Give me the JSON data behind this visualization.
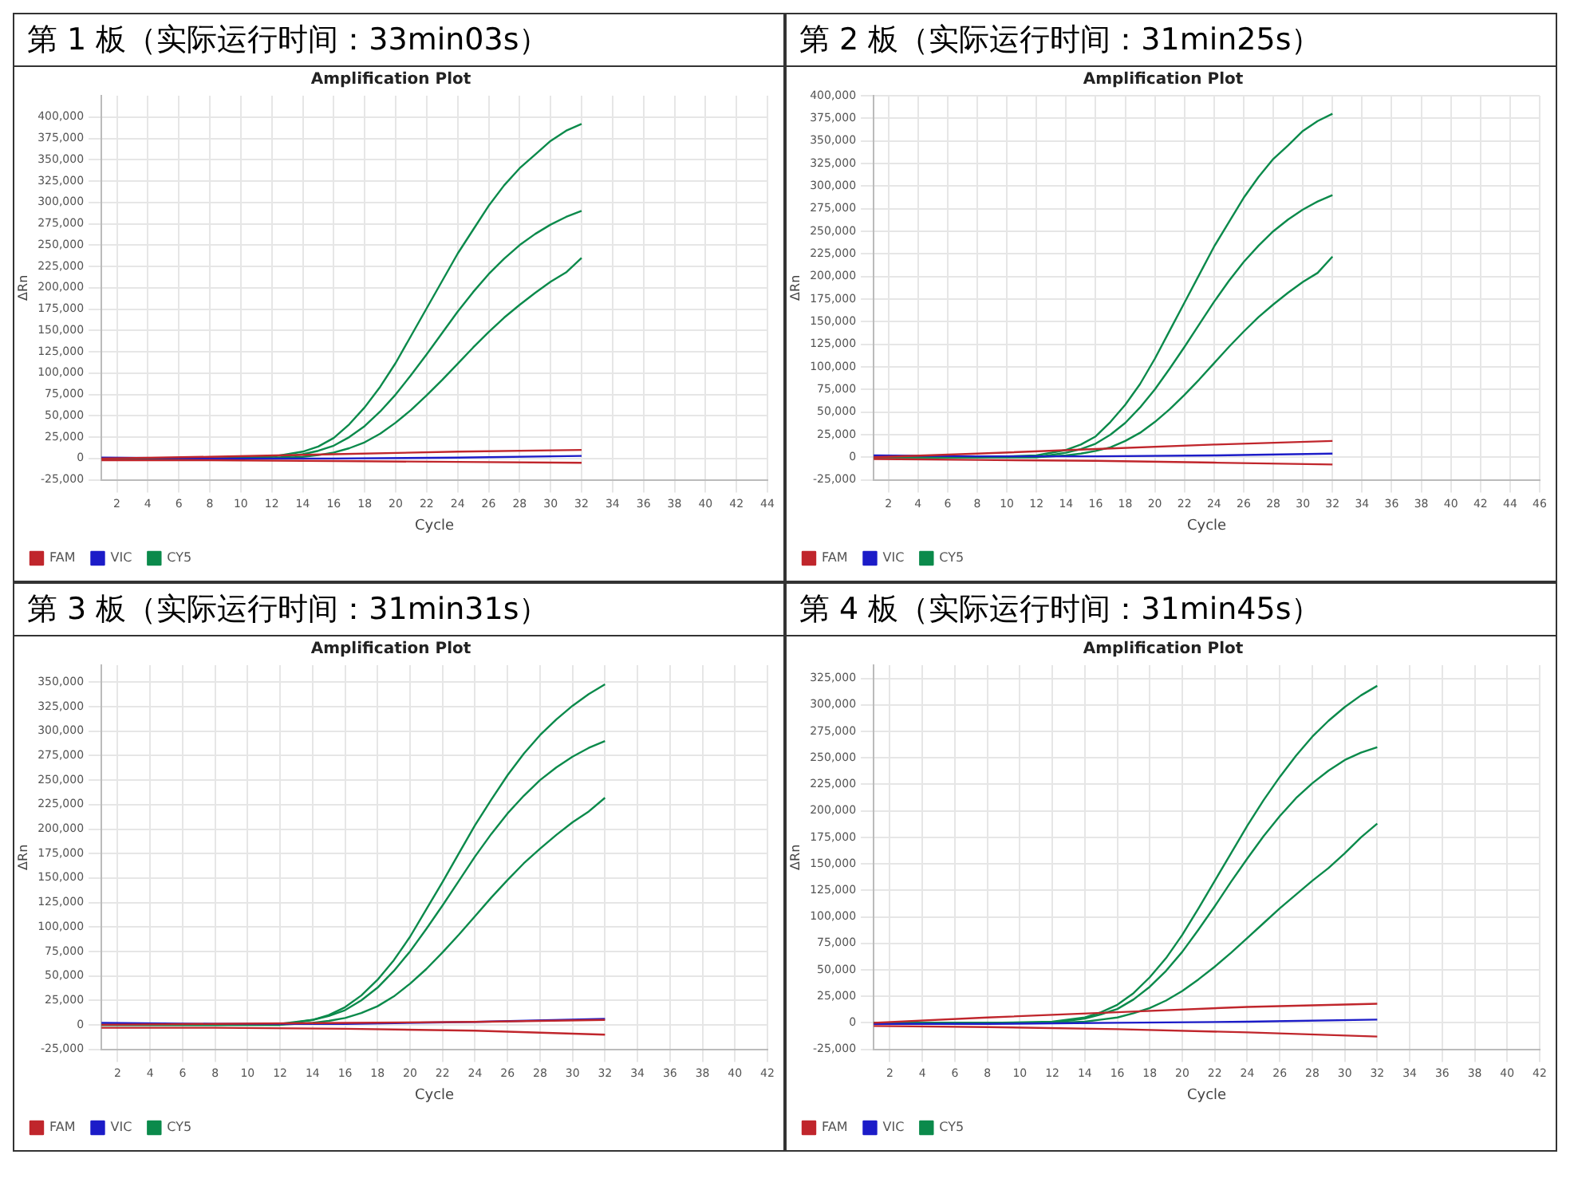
{
  "chart_data": [
    {
      "type": "line",
      "title": "第 1 板（实际运行时间：33min03s）",
      "subtitle": "Amplification Plot",
      "xlabel": "Cycle",
      "ylabel": "ΔRn",
      "legend": "bottom left",
      "grid": true,
      "marker": "none",
      "x": [
        1,
        4,
        8,
        12,
        14,
        15,
        16,
        17,
        18,
        19,
        20,
        21,
        22,
        23,
        24,
        25,
        26,
        27,
        28,
        29,
        30,
        31,
        32
      ],
      "xlim": [
        1,
        44
      ],
      "xticks": [
        2,
        4,
        6,
        8,
        10,
        12,
        14,
        16,
        18,
        20,
        22,
        24,
        26,
        28,
        30,
        32,
        34,
        36,
        38,
        40,
        42,
        44
      ],
      "ylim": [
        -25000,
        425000
      ],
      "yticks": [
        {
          "value": -25000,
          "label": "-25,000"
        },
        {
          "value": 0,
          "label": "0"
        },
        {
          "value": 25000,
          "label": "25,000"
        },
        {
          "value": 50000,
          "label": "50,000"
        },
        {
          "value": 75000,
          "label": "75,000"
        },
        {
          "value": 100000,
          "label": "100,000"
        },
        {
          "value": 125000,
          "label": "125,000"
        },
        {
          "value": 150000,
          "label": "150,000"
        },
        {
          "value": 175000,
          "label": "175,000"
        },
        {
          "value": 200000,
          "label": "200,000"
        },
        {
          "value": 225000,
          "label": "225,000"
        },
        {
          "value": 250000,
          "label": "250,000"
        },
        {
          "value": 275000,
          "label": "275,000"
        },
        {
          "value": 300000,
          "label": "300,000"
        },
        {
          "value": 325000,
          "label": "325,000"
        },
        {
          "value": 350000,
          "label": "350,000"
        },
        {
          "value": 375000,
          "label": "375,000"
        },
        {
          "value": 400000,
          "label": "400,000"
        }
      ],
      "series": [
        {
          "name": "FAM",
          "color": "#c0262c",
          "x": [
            1,
            8,
            16,
            24,
            32
          ],
          "values": [
            0,
            2000,
            5000,
            8000,
            10000
          ]
        },
        {
          "color": "#c0262c",
          "x": [
            1,
            8,
            16,
            24,
            32
          ],
          "values": [
            -2000,
            -2000,
            -3000,
            -4000,
            -5000
          ]
        },
        {
          "name": "VIC",
          "color": "#1c1cc8",
          "x": [
            1,
            8,
            16,
            24,
            32
          ],
          "values": [
            1000,
            0,
            0,
            1000,
            3000
          ]
        },
        {
          "name": "CY5",
          "color": "#0b8a4b",
          "values": [
            0,
            0,
            0,
            2000,
            8000,
            14000,
            24000,
            40000,
            60000,
            84000,
            112000,
            144000,
            176000,
            208000,
            240000,
            268000,
            296000,
            320000,
            340000,
            356000,
            372000,
            384000,
            392000
          ]
        },
        {
          "color": "#0b8a4b",
          "values": [
            0,
            0,
            0,
            0,
            5000,
            9000,
            15000,
            25000,
            38000,
            55000,
            75000,
            98000,
            122000,
            147000,
            172000,
            195000,
            216000,
            234000,
            250000,
            263000,
            274000,
            283000,
            290000
          ]
        },
        {
          "color": "#0b8a4b",
          "values": [
            0,
            0,
            0,
            0,
            2000,
            4000,
            7000,
            12000,
            19000,
            29000,
            42000,
            57000,
            74000,
            92000,
            111000,
            130000,
            148000,
            165000,
            180000,
            194000,
            207000,
            218000,
            235000
          ]
        }
      ]
    },
    {
      "type": "line",
      "title": "第 2 板（实际运行时间：31min25s）",
      "subtitle": "Amplification Plot",
      "xlabel": "Cycle",
      "ylabel": "ΔRn",
      "legend": "bottom left",
      "grid": true,
      "marker": "none",
      "x": [
        1,
        4,
        8,
        12,
        14,
        15,
        16,
        17,
        18,
        19,
        20,
        21,
        22,
        23,
        24,
        25,
        26,
        27,
        28,
        29,
        30,
        31,
        32
      ],
      "xlim": [
        1,
        46
      ],
      "xticks": [
        2,
        4,
        6,
        8,
        10,
        12,
        14,
        16,
        18,
        20,
        22,
        24,
        26,
        28,
        30,
        32,
        34,
        36,
        38,
        40,
        42,
        44,
        46
      ],
      "ylim": [
        -25000,
        400000
      ],
      "yticks": [
        {
          "value": -25000,
          "label": "-25,000"
        },
        {
          "value": 0,
          "label": "0"
        },
        {
          "value": 25000,
          "label": "25,000"
        },
        {
          "value": 50000,
          "label": "50,000"
        },
        {
          "value": 75000,
          "label": "75,000"
        },
        {
          "value": 100000,
          "label": "100,000"
        },
        {
          "value": 125000,
          "label": "125,000"
        },
        {
          "value": 150000,
          "label": "150,000"
        },
        {
          "value": 175000,
          "label": "175,000"
        },
        {
          "value": 200000,
          "label": "200,000"
        },
        {
          "value": 225000,
          "label": "225,000"
        },
        {
          "value": 250000,
          "label": "250,000"
        },
        {
          "value": 275000,
          "label": "275,000"
        },
        {
          "value": 300000,
          "label": "300,000"
        },
        {
          "value": 325000,
          "label": "325,000"
        },
        {
          "value": 350000,
          "label": "350,000"
        },
        {
          "value": 375000,
          "label": "375,000"
        },
        {
          "value": 400000,
          "label": "400,000"
        }
      ],
      "series": [
        {
          "name": "FAM",
          "color": "#c0262c",
          "x": [
            1,
            8,
            16,
            24,
            32
          ],
          "values": [
            0,
            4000,
            9000,
            14000,
            18000
          ]
        },
        {
          "color": "#c0262c",
          "x": [
            1,
            8,
            16,
            24,
            32
          ],
          "values": [
            -2000,
            -3000,
            -4000,
            -6000,
            -8000
          ]
        },
        {
          "name": "VIC",
          "color": "#1c1cc8",
          "x": [
            1,
            8,
            16,
            24,
            32
          ],
          "values": [
            2000,
            1000,
            1000,
            2000,
            4000
          ]
        },
        {
          "name": "CY5",
          "color": "#0b8a4b",
          "values": [
            0,
            0,
            0,
            2000,
            8000,
            14000,
            23000,
            39000,
            58000,
            81000,
            109000,
            140000,
            171000,
            202000,
            233000,
            260000,
            287000,
            310000,
            330000,
            345000,
            361000,
            372000,
            380000
          ]
        },
        {
          "color": "#0b8a4b",
          "values": [
            0,
            0,
            0,
            0,
            5000,
            9000,
            15000,
            25000,
            38000,
            55000,
            75000,
            98000,
            122000,
            147000,
            172000,
            195000,
            216000,
            234000,
            250000,
            263000,
            274000,
            283000,
            290000
          ]
        },
        {
          "color": "#0b8a4b",
          "values": [
            0,
            0,
            0,
            0,
            2000,
            4000,
            7000,
            11000,
            18000,
            27000,
            39000,
            53000,
            69000,
            86000,
            104000,
            122000,
            139000,
            155000,
            169000,
            182000,
            194000,
            204000,
            222000
          ]
        }
      ]
    },
    {
      "type": "line",
      "title": "第 3 板（实际运行时间：31min31s）",
      "subtitle": "Amplification Plot",
      "xlabel": "Cycle",
      "ylabel": "ΔRn",
      "legend": "bottom left",
      "grid": true,
      "marker": "none",
      "x": [
        1,
        4,
        8,
        12,
        14,
        15,
        16,
        17,
        18,
        19,
        20,
        21,
        22,
        23,
        24,
        25,
        26,
        27,
        28,
        29,
        30,
        31,
        32
      ],
      "xlim": [
        1,
        42
      ],
      "xticks": [
        2,
        4,
        6,
        8,
        10,
        12,
        14,
        16,
        18,
        20,
        22,
        24,
        26,
        28,
        30,
        32,
        34,
        36,
        38,
        40,
        42
      ],
      "ylim": [
        -25000,
        367500
      ],
      "yticks": [
        {
          "value": -25000,
          "label": "-25,000"
        },
        {
          "value": 0,
          "label": "0"
        },
        {
          "value": 25000,
          "label": "25,000"
        },
        {
          "value": 50000,
          "label": "50,000"
        },
        {
          "value": 75000,
          "label": "75,000"
        },
        {
          "value": 100000,
          "label": "100,000"
        },
        {
          "value": 125000,
          "label": "125,000"
        },
        {
          "value": 150000,
          "label": "150,000"
        },
        {
          "value": 175000,
          "label": "175,000"
        },
        {
          "value": 200000,
          "label": "200,000"
        },
        {
          "value": 225000,
          "label": "225,000"
        },
        {
          "value": 250000,
          "label": "250,000"
        },
        {
          "value": 275000,
          "label": "275,000"
        },
        {
          "value": 300000,
          "label": "300,000"
        },
        {
          "value": 325000,
          "label": "325,000"
        },
        {
          "value": 350000,
          "label": "350,000"
        }
      ],
      "series": [
        {
          "name": "FAM",
          "color": "#c0262c",
          "x": [
            1,
            8,
            16,
            24,
            32
          ],
          "values": [
            0,
            1000,
            2000,
            3000,
            5000
          ]
        },
        {
          "color": "#c0262c",
          "x": [
            1,
            8,
            16,
            24,
            32
          ],
          "values": [
            -3000,
            -3000,
            -4000,
            -6000,
            -10000
          ]
        },
        {
          "name": "VIC",
          "color": "#1c1cc8",
          "x": [
            1,
            8,
            16,
            24,
            32
          ],
          "values": [
            2000,
            1000,
            1000,
            3000,
            6000
          ]
        },
        {
          "name": "CY5",
          "color": "#0b8a4b",
          "values": [
            0,
            0,
            0,
            1000,
            5000,
            10000,
            18000,
            30000,
            46000,
            66000,
            90000,
            118000,
            146000,
            175000,
            204000,
            230000,
            255000,
            277000,
            296000,
            312000,
            326000,
            338000,
            348000
          ]
        },
        {
          "color": "#0b8a4b",
          "values": [
            0,
            0,
            0,
            0,
            5000,
            9000,
            15000,
            25000,
            38000,
            55000,
            75000,
            98000,
            122000,
            147000,
            172000,
            195000,
            216000,
            234000,
            250000,
            263000,
            274000,
            283000,
            290000
          ]
        },
        {
          "color": "#0b8a4b",
          "values": [
            0,
            0,
            0,
            0,
            2000,
            4000,
            7000,
            12000,
            19000,
            29000,
            42000,
            57000,
            74000,
            92000,
            111000,
            130000,
            148000,
            165000,
            180000,
            194000,
            207000,
            218000,
            232000
          ]
        }
      ]
    },
    {
      "type": "line",
      "title": "第 4 板（实际运行时间：31min45s）",
      "subtitle": "Amplification Plot",
      "xlabel": "Cycle",
      "ylabel": "ΔRn",
      "legend": "bottom left",
      "grid": true,
      "marker": "none",
      "x": [
        1,
        4,
        8,
        12,
        14,
        15,
        16,
        17,
        18,
        19,
        20,
        21,
        22,
        23,
        24,
        25,
        26,
        27,
        28,
        29,
        30,
        31,
        32
      ],
      "xlim": [
        1,
        42
      ],
      "xticks": [
        2,
        4,
        6,
        8,
        10,
        12,
        14,
        16,
        18,
        20,
        22,
        24,
        26,
        28,
        30,
        32,
        34,
        36,
        38,
        40,
        42
      ],
      "ylim": [
        -25000,
        337500
      ],
      "yticks": [
        {
          "value": -25000,
          "label": "-25,000"
        },
        {
          "value": 0,
          "label": "0"
        },
        {
          "value": 25000,
          "label": "25,000"
        },
        {
          "value": 50000,
          "label": "50,000"
        },
        {
          "value": 75000,
          "label": "75,000"
        },
        {
          "value": 100000,
          "label": "100,000"
        },
        {
          "value": 125000,
          "label": "125,000"
        },
        {
          "value": 150000,
          "label": "150,000"
        },
        {
          "value": 175000,
          "label": "175,000"
        },
        {
          "value": 200000,
          "label": "200,000"
        },
        {
          "value": 225000,
          "label": "225,000"
        },
        {
          "value": 250000,
          "label": "250,000"
        },
        {
          "value": 275000,
          "label": "275,000"
        },
        {
          "value": 300000,
          "label": "300,000"
        },
        {
          "value": 325000,
          "label": "325,000"
        }
      ],
      "series": [
        {
          "name": "FAM",
          "color": "#c0262c",
          "x": [
            1,
            8,
            16,
            24,
            32
          ],
          "values": [
            0,
            5000,
            10000,
            15000,
            18000
          ]
        },
        {
          "color": "#c0262c",
          "x": [
            1,
            8,
            16,
            24,
            32
          ],
          "values": [
            -3000,
            -4000,
            -6000,
            -9000,
            -13000
          ]
        },
        {
          "name": "VIC",
          "color": "#1c1cc8",
          "x": [
            1,
            8,
            16,
            24,
            32
          ],
          "values": [
            -1000,
            -1000,
            0,
            1000,
            3000
          ]
        },
        {
          "name": "CY5",
          "color": "#0b8a4b",
          "values": [
            0,
            0,
            0,
            1000,
            5000,
            10000,
            17000,
            28000,
            43000,
            61000,
            83000,
            108000,
            134000,
            160000,
            186000,
            210000,
            232000,
            252000,
            270000,
            285000,
            298000,
            309000,
            318000
          ]
        },
        {
          "color": "#0b8a4b",
          "values": [
            0,
            0,
            0,
            0,
            4000,
            8000,
            13000,
            22000,
            34000,
            49000,
            67000,
            88000,
            110000,
            133000,
            155000,
            176000,
            195000,
            212000,
            226000,
            238000,
            248000,
            255000,
            260000
          ]
        },
        {
          "color": "#0b8a4b",
          "values": [
            0,
            0,
            0,
            0,
            1000,
            3000,
            5000,
            9000,
            14000,
            21000,
            30000,
            41000,
            53000,
            66000,
            80000,
            94000,
            108000,
            121000,
            134000,
            146000,
            160000,
            175000,
            188000
          ]
        }
      ]
    }
  ]
}
